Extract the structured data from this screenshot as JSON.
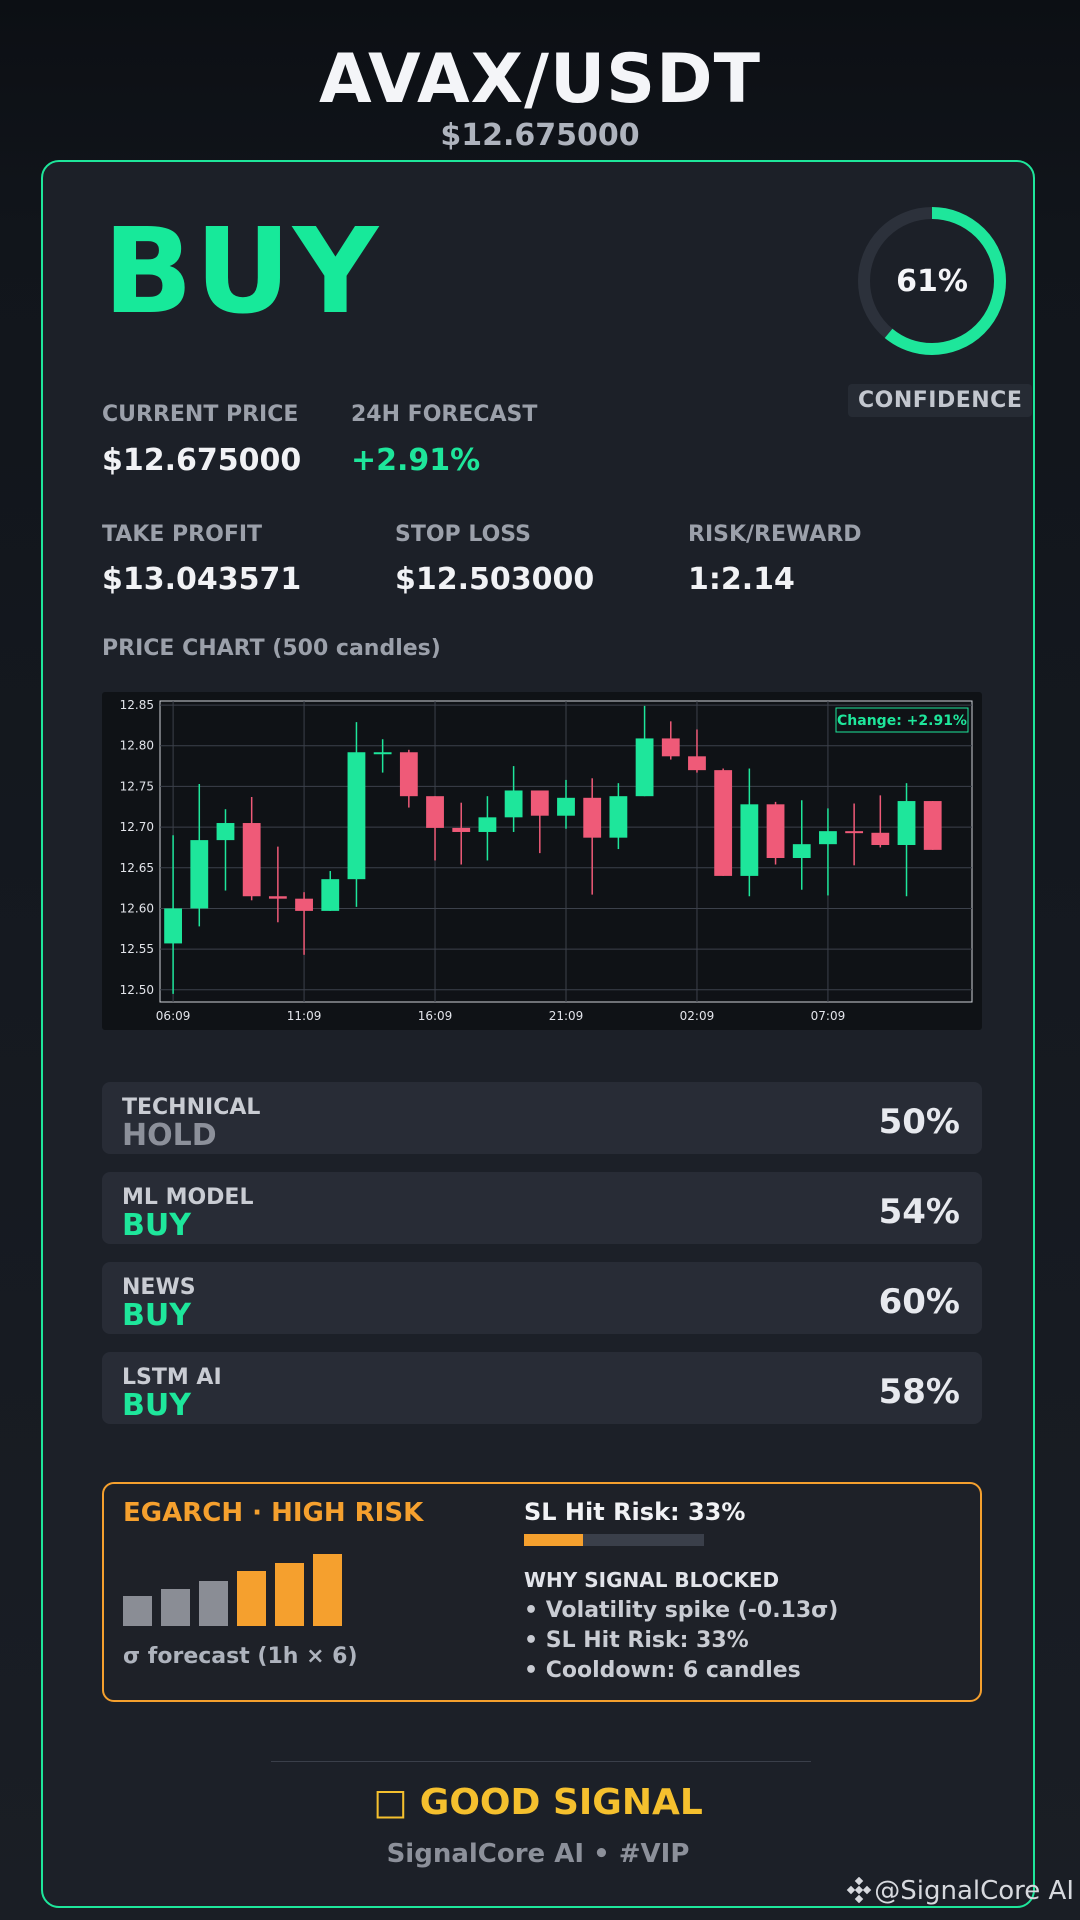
{
  "header": {
    "pair": "AVAX/USDT",
    "price": "$12.675000"
  },
  "signal": {
    "action": "BUY",
    "confidence": 61,
    "confidence_text": "61%",
    "confidence_label": "CONFIDENCE",
    "accent_color": "#1ee69b"
  },
  "stats": {
    "current_price_label": "CURRENT PRICE",
    "current_price": "$12.675000",
    "forecast_label": "24H FORECAST",
    "forecast": "+2.91%",
    "take_profit_label": "TAKE PROFIT",
    "take_profit": "$13.043571",
    "stop_loss_label": "STOP LOSS",
    "stop_loss": "$12.503000",
    "risk_reward_label": "RISK/REWARD",
    "risk_reward": "1:2.14"
  },
  "chart_title": "PRICE CHART (500 candles)",
  "chart_data": {
    "type": "candlestick",
    "annotation": "Change: +2.91%",
    "ylim": [
      12.485,
      12.855
    ],
    "yticks": [
      12.5,
      12.55,
      12.6,
      12.65,
      12.7,
      12.75,
      12.8,
      12.85
    ],
    "ytick_labels": [
      "12.50",
      "12.55",
      "12.60",
      "12.65",
      "12.70",
      "12.75",
      "12.80",
      "12.85"
    ],
    "xtick_labels": [
      "06:09",
      "11:09",
      "16:09",
      "21:09",
      "02:09",
      "07:09"
    ],
    "xtick_index": [
      0,
      5,
      10,
      15,
      20,
      25
    ],
    "grid": true,
    "up_color": "#1ee69b",
    "down_color": "#ef5a78",
    "candles": [
      {
        "o": 12.557,
        "h": 12.69,
        "l": 12.495,
        "c": 12.6
      },
      {
        "o": 12.6,
        "h": 12.753,
        "l": 12.578,
        "c": 12.684
      },
      {
        "o": 12.684,
        "h": 12.722,
        "l": 12.622,
        "c": 12.705
      },
      {
        "o": 12.705,
        "h": 12.737,
        "l": 12.61,
        "c": 12.615
      },
      {
        "o": 12.615,
        "h": 12.676,
        "l": 12.583,
        "c": 12.612
      },
      {
        "o": 12.612,
        "h": 12.62,
        "l": 12.543,
        "c": 12.597
      },
      {
        "o": 12.597,
        "h": 12.646,
        "l": 12.597,
        "c": 12.636
      },
      {
        "o": 12.636,
        "h": 12.829,
        "l": 12.602,
        "c": 12.792
      },
      {
        "o": 12.792,
        "h": 12.808,
        "l": 12.767,
        "c": 12.792
      },
      {
        "o": 12.792,
        "h": 12.795,
        "l": 12.724,
        "c": 12.738
      },
      {
        "o": 12.738,
        "h": 12.738,
        "l": 12.659,
        "c": 12.699
      },
      {
        "o": 12.699,
        "h": 12.73,
        "l": 12.654,
        "c": 12.694
      },
      {
        "o": 12.694,
        "h": 12.738,
        "l": 12.659,
        "c": 12.712
      },
      {
        "o": 12.712,
        "h": 12.775,
        "l": 12.694,
        "c": 12.745
      },
      {
        "o": 12.745,
        "h": 12.745,
        "l": 12.668,
        "c": 12.714
      },
      {
        "o": 12.714,
        "h": 12.758,
        "l": 12.698,
        "c": 12.736
      },
      {
        "o": 12.736,
        "h": 12.76,
        "l": 12.617,
        "c": 12.687
      },
      {
        "o": 12.687,
        "h": 12.754,
        "l": 12.673,
        "c": 12.738
      },
      {
        "o": 12.738,
        "h": 12.849,
        "l": 12.738,
        "c": 12.809
      },
      {
        "o": 12.809,
        "h": 12.83,
        "l": 12.783,
        "c": 12.787
      },
      {
        "o": 12.787,
        "h": 12.82,
        "l": 12.767,
        "c": 12.77
      },
      {
        "o": 12.77,
        "h": 12.772,
        "l": 12.64,
        "c": 12.64
      },
      {
        "o": 12.64,
        "h": 12.772,
        "l": 12.615,
        "c": 12.728
      },
      {
        "o": 12.728,
        "h": 12.731,
        "l": 12.654,
        "c": 12.662
      },
      {
        "o": 12.662,
        "h": 12.733,
        "l": 12.623,
        "c": 12.679
      },
      {
        "o": 12.679,
        "h": 12.723,
        "l": 12.616,
        "c": 12.695
      },
      {
        "o": 12.695,
        "h": 12.729,
        "l": 12.653,
        "c": 12.693
      },
      {
        "o": 12.693,
        "h": 12.739,
        "l": 12.675,
        "c": 12.678
      },
      {
        "o": 12.678,
        "h": 12.754,
        "l": 12.615,
        "c": 12.732
      },
      {
        "o": 12.732,
        "h": 12.732,
        "l": 12.672,
        "c": 12.672
      }
    ]
  },
  "models": [
    {
      "name": "TECHNICAL",
      "signal": "HOLD",
      "percent": "50%"
    },
    {
      "name": "ML MODEL",
      "signal": "BUY",
      "percent": "54%"
    },
    {
      "name": "NEWS",
      "signal": "BUY",
      "percent": "60%"
    },
    {
      "name": "LSTM AI",
      "signal": "BUY",
      "percent": "58%"
    }
  ],
  "risk": {
    "title": "EGARCH · HIGH RISK",
    "sigma_label": "σ forecast (1h × 6)",
    "sigma_bars": [
      {
        "level": 0.42,
        "color": "#8a8d95"
      },
      {
        "level": 0.52,
        "color": "#8a8d95"
      },
      {
        "level": 0.63,
        "color": "#8a8d95"
      },
      {
        "level": 0.76,
        "color": "#f5a02e"
      },
      {
        "level": 0.88,
        "color": "#f5a02e"
      },
      {
        "level": 1.0,
        "color": "#f5a02e"
      }
    ],
    "sl_hit_text": "SL Hit Risk: 33%",
    "sl_hit_value": 0.33,
    "why_title": "WHY SIGNAL BLOCKED",
    "reasons": [
      "• Volatility spike (-0.13σ)",
      "• SL Hit Risk: 33%",
      "• Cooldown: 6 candles"
    ],
    "accent_color": "#f5a02e"
  },
  "footer": {
    "verdict_icon": "□",
    "verdict": "GOOD SIGNAL",
    "brand": "SignalCore AI • #VIP",
    "watermark": "@SignalCore AI"
  }
}
